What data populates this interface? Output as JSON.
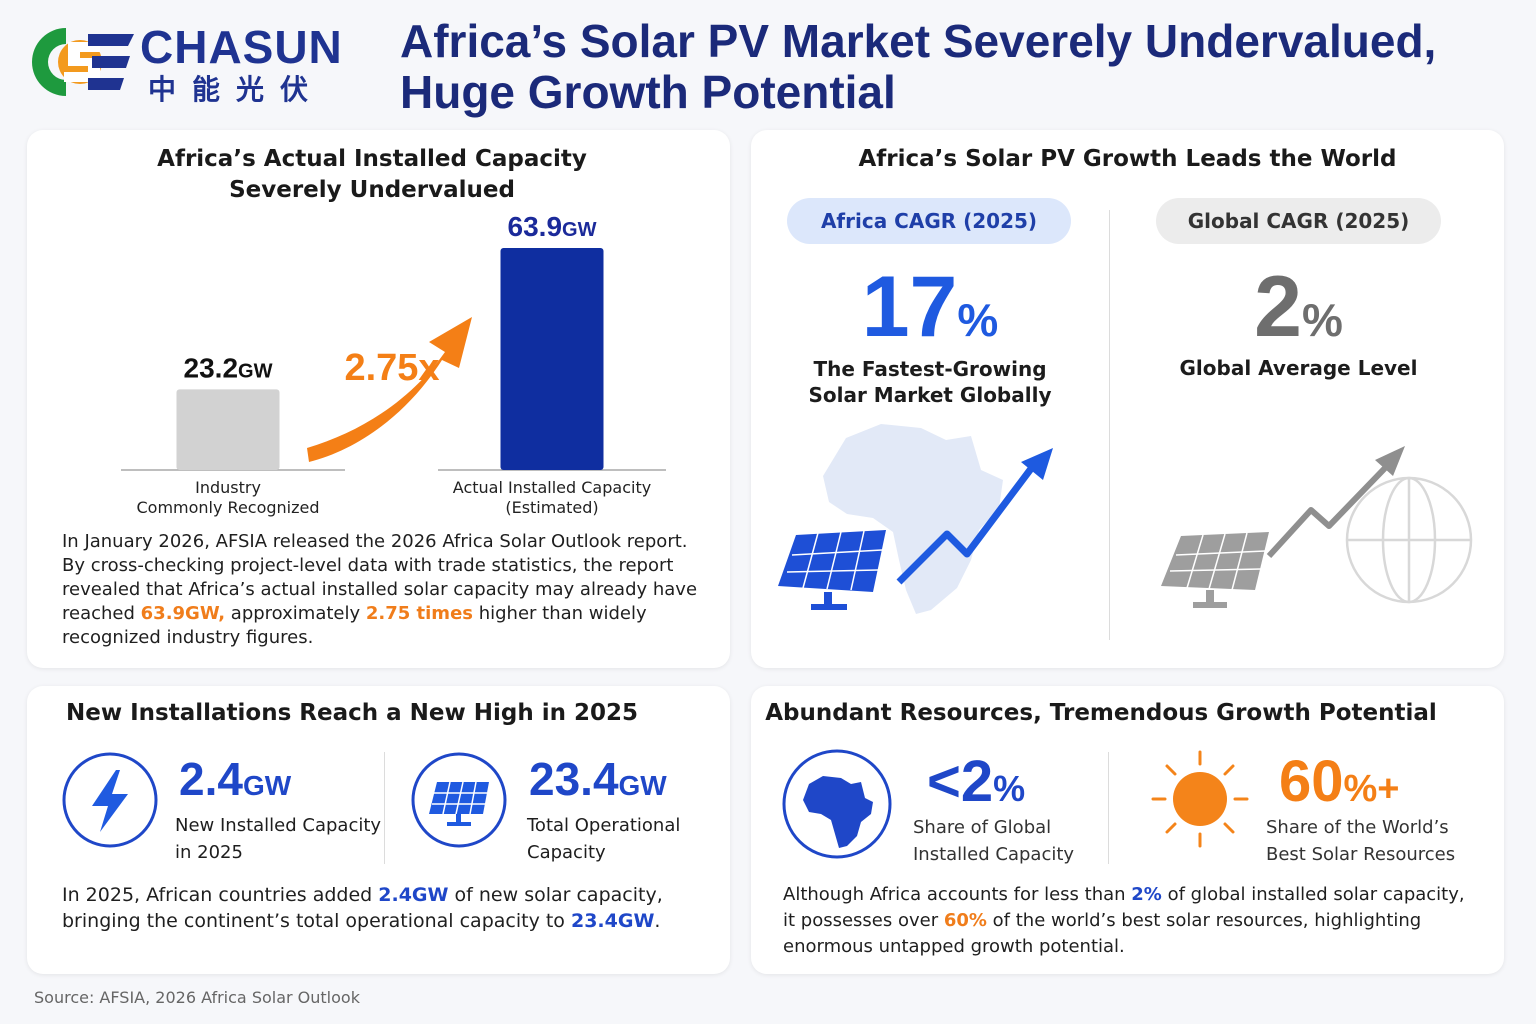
{
  "brand": {
    "name_en": "CHASUN",
    "name_cn": "中能光伏"
  },
  "title": {
    "line1": "Africa’s Solar PV Market Severely Undervalued,",
    "line2": "Huge Growth Potential"
  },
  "colors": {
    "navy": "#1b2a7a",
    "bar_blue": "#0f2ea0",
    "bar_gray": "#d2d2d2",
    "orange": "#f07d1b",
    "blue": "#1f47c8",
    "gray": "#6e6e6e"
  },
  "card1": {
    "title_line1": "Africa’s Actual Installed Capacity",
    "title_line2": "Severely Undervalued",
    "multiplier": "2.75x",
    "para": {
      "t1": "In January 2026, AFSIA released the 2026 Africa Solar Outlook report. By cross-checking project-level data with trade statistics, the report revealed that Africa’s actual installed solar capacity may already have reached ",
      "h1": "63.9GW,",
      "t2": " approximately ",
      "h2": "2.75 times",
      "t3": " higher than widely recognized industry figures."
    }
  },
  "chart_data": {
    "type": "bar",
    "title": "Africa’s Actual Installed Capacity Severely Undervalued",
    "unit": "GW",
    "categories": [
      "Industry Commonly Recognized",
      "Actual Installed Capacity (Estimated)"
    ],
    "category_lines": [
      [
        "Industry",
        "Commonly Recognized"
      ],
      [
        "Actual Installed Capacity",
        "(Estimated)"
      ]
    ],
    "values": [
      23.2,
      63.9
    ],
    "value_labels": [
      "23.2",
      "63.9"
    ],
    "ylim": [
      0,
      63.9
    ],
    "bar_colors": [
      "#d2d2d2",
      "#0f2ea0"
    ],
    "annotation": "2.75x"
  },
  "card2": {
    "title": "Africa’s Solar PV Growth Leads the World",
    "africa": {
      "pill": "Africa CAGR (2025)",
      "value": "17",
      "unit": "%",
      "caption_line1": "The Fastest-Growing",
      "caption_line2": "Solar Market Globally",
      "icons": [
        "africa-map-icon",
        "solar-panel-icon",
        "trend-up-arrow-icon"
      ]
    },
    "global": {
      "pill": "Global CAGR (2025)",
      "value": "2",
      "unit": "%",
      "caption": "Global Average Level",
      "icons": [
        "globe-icon",
        "solar-panel-icon",
        "trend-up-arrow-icon"
      ]
    }
  },
  "card3": {
    "title": "New Installations Reach a New High in 2025",
    "new": {
      "value": "2.4",
      "unit": "GW",
      "caption_line1": "New Installed Capacity",
      "caption_line2": "in 2025",
      "icon": "lightning-icon"
    },
    "total": {
      "value": "23.4",
      "unit": "GW",
      "caption_line1": "Total Operational",
      "caption_line2": "Capacity",
      "icon": "solar-panel-icon"
    },
    "para": {
      "t1": "In 2025, African countries added ",
      "h1": "2.4GW",
      "t2": " of new solar capacity, bringing the continent’s total operational capacity to ",
      "h2": "23.4GW",
      "t3": "."
    }
  },
  "card4": {
    "title": "Abundant Resources, Tremendous Growth Potential",
    "share": {
      "value": "<2",
      "unit": "%",
      "caption_line1": "Share of Global",
      "caption_line2": "Installed Capacity",
      "icon": "africa-map-icon"
    },
    "resources": {
      "value": "60",
      "unit": "%+",
      "caption_line1": "Share of the World’s",
      "caption_line2": "Best Solar Resources",
      "icon": "sun-icon"
    },
    "para": {
      "t1": "Although Africa accounts for less than ",
      "h1": "2%",
      "t2": " of global installed solar capacity, it possesses over ",
      "h2": "60%",
      "t3": " of the world’s best solar resources, highlighting enormous untapped growth potential."
    }
  },
  "source": "Source:  AFSIA,  2026 Africa Solar Outlook"
}
